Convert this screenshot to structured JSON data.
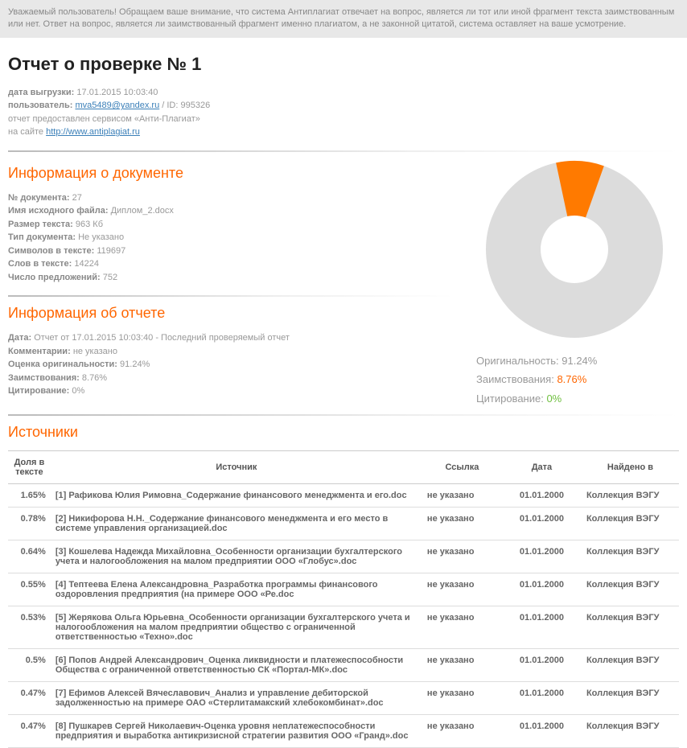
{
  "notice": "Уважаемый пользователь! Обращаем ваше внимание, что система Антиплагиат отвечает на вопрос, является ли тот или иной фрагмент текста заимствованным или нет. Ответ на вопрос, является ли заимствованный фрагмент именно плагиатом, а не законной цитатой, система оставляет на ваше усмотрение.",
  "title": "Отчет о проверке № 1",
  "meta": {
    "export_date_label": "дата выгрузки:",
    "export_date": "17.01.2015 10:03:40",
    "user_label": "пользователь:",
    "user_email": "mva5489@yandex.ru",
    "user_id_label": "/ ID:",
    "user_id": "995326",
    "service_line": "отчет предоставлен сервисом «Анти-Плагиат»",
    "site_line_prefix": "на сайте",
    "site_url": "http://www.antiplagiat.ru"
  },
  "doc_section_title": "Информация о документе",
  "doc": {
    "num_label": "№ документа:",
    "num": "27",
    "fname_label": "Имя исходного файла:",
    "fname": "Диплом_2.docx",
    "size_label": "Размер текста:",
    "size": "963 Кб",
    "type_label": "Тип документа:",
    "type": "Не указано",
    "chars_label": "Символов в тексте:",
    "chars": "119697",
    "words_label": "Слов в тексте:",
    "words": "14224",
    "sent_label": "Число предложений:",
    "sent": "752"
  },
  "report_section_title": "Информация об отчете",
  "report": {
    "date_label": "Дата:",
    "date": "Отчет от 17.01.2015 10:03:40 - Последний проверяемый отчет",
    "comments_label": "Комментарии:",
    "comments": "не указано",
    "orig_label": "Оценка оригинальности:",
    "orig": "91.24%",
    "borrow_label": "Заимствования:",
    "borrow": "8.76%",
    "cite_label": "Цитирование:",
    "cite": "0%"
  },
  "donut": {
    "outer_r": 110,
    "inner_r": 42,
    "bg": "#ffffff",
    "ring_color": "#dcdcdc",
    "slice_color": "#ff7a00",
    "slice_pct": 8.76,
    "slice_start_deg": -12
  },
  "legend": {
    "orig_label": "Оригинальность:",
    "orig_val": "91.24%",
    "borrow_label": "Заимствования:",
    "borrow_val": "8.76%",
    "cite_label": "Цитирование:",
    "cite_val": "0%"
  },
  "sources_title": "Источники",
  "columns": {
    "pct": "Доля в тексте",
    "src": "Источник",
    "link": "Ссылка",
    "date": "Дата",
    "found": "Найдено в"
  },
  "rows": [
    {
      "pct": "1.65%",
      "src": "[1] Рафикова Юлия Римовна_Содержание финансового менеджмента и его.doc",
      "link": "не указано",
      "date": "01.01.2000",
      "found": "Коллекция ВЭГУ"
    },
    {
      "pct": "0.78%",
      "src": "[2] Никифорова Н.Н._Содержание финансового менеджмента и его место в системе управления организацией.doc",
      "link": "не указано",
      "date": "01.01.2000",
      "found": "Коллекция ВЭГУ"
    },
    {
      "pct": "0.64%",
      "src": "[3] Кошелева Надежда Михайловна_Особенности организации бухгалтерского учета и налогообложения на малом предприятии ООО «Глобус».doc",
      "link": "не указано",
      "date": "01.01.2000",
      "found": "Коллекция ВЭГУ"
    },
    {
      "pct": "0.55%",
      "src": "[4] Тептеева Елена Александровна_Разработка программы финансового оздоровления предприятия (на примере ООО «Ре.doc",
      "link": "не указано",
      "date": "01.01.2000",
      "found": "Коллекция ВЭГУ"
    },
    {
      "pct": "0.53%",
      "src": "[5] Жерякова Ольга Юрьевна_Особенности организации бухгалтерского учета и налогообложения на малом предприятии общество с ограниченной ответственностью «Техно».doc",
      "link": "не указано",
      "date": "01.01.2000",
      "found": "Коллекция ВЭГУ"
    },
    {
      "pct": "0.5%",
      "src": "[6] Попов Андрей Александрович_Оценка ликвидности и платежеспособности Общества с ограниченной ответственностью СК «Портал-МК».doc",
      "link": "не указано",
      "date": "01.01.2000",
      "found": "Коллекция ВЭГУ"
    },
    {
      "pct": "0.47%",
      "src": "[7] Ефимов Алексей Вячеславович_Анализ и управление дебиторской задолженностью на примере ОАО «Стерлитамакский хлебокомбинат».doc",
      "link": "не указано",
      "date": "01.01.2000",
      "found": "Коллекция ВЭГУ"
    },
    {
      "pct": "0.47%",
      "src": "[8] Пушкарев Сергей Николаевич-Оценка уровня неплатежеспособности предприятия и выработка антикризисной стратегии развития ООО «Гранд».doc",
      "link": "не указано",
      "date": "01.01.2000",
      "found": "Коллекция ВЭГУ"
    }
  ]
}
